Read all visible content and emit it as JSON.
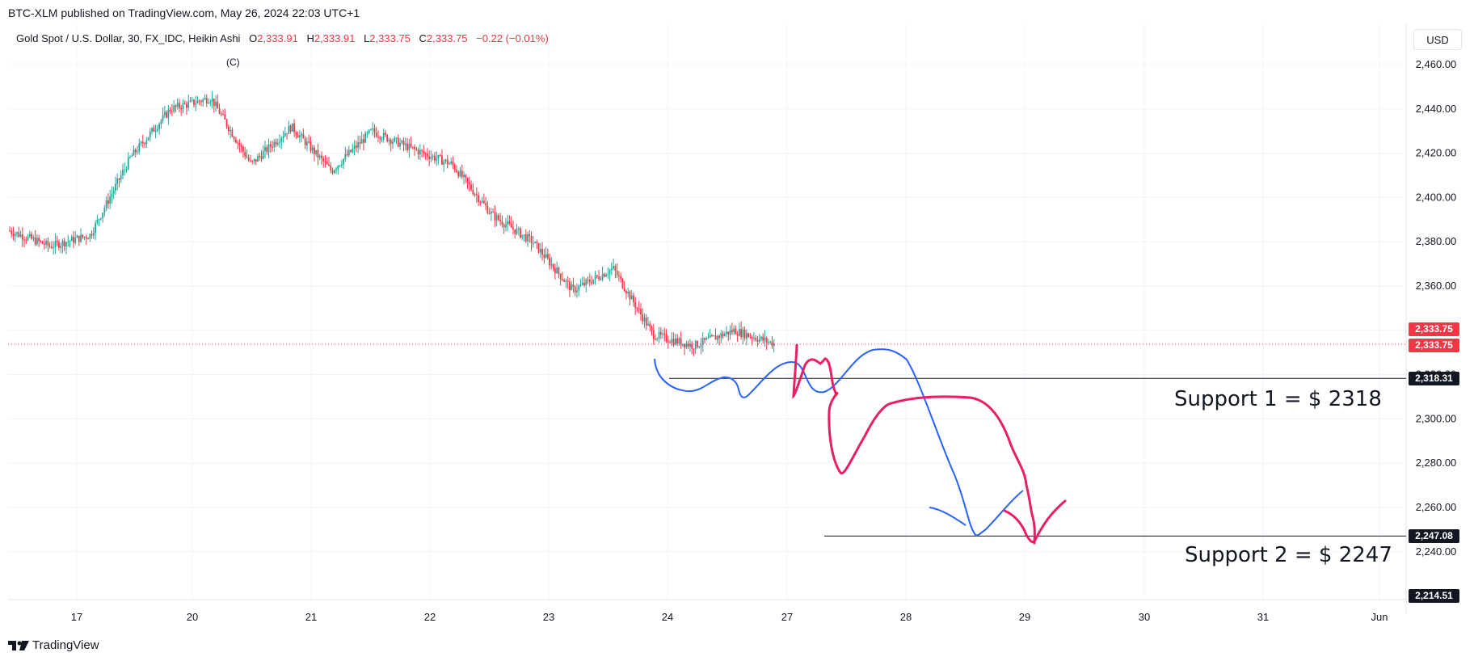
{
  "published": "BTC-XLM published on TradingView.com, May 26, 2024 22:03 UTC+1",
  "legend": {
    "symbol": "Gold Spot / U.S. Dollar, 30, FX_IDC, Heikin Ashi",
    "o_key": "O",
    "o_val": "2,333.91",
    "h_key": "H",
    "h_val": "2,333.91",
    "l_key": "L",
    "l_val": "2,333.75",
    "c_key": "C",
    "c_val": "2,333.75",
    "change": "−0.22 (−0.01%)"
  },
  "currency_button": "USD",
  "wave_label": "(C)",
  "supports": {
    "s1_label": "Support 1 = $ 2318",
    "s2_label": "Support 2 = $ 2247"
  },
  "price_tags": {
    "current_a": "2,333.75",
    "current_b": "2,333.75",
    "support1": "2,318.31",
    "support2": "2,247.08",
    "low": "2,214.51"
  },
  "footer_brand": "TradingView",
  "colors": {
    "up": "#26a69a",
    "down": "#f23645",
    "blue_path": "#2962ff",
    "pink_path": "#e91e63",
    "grid": "#f0f3fa",
    "text": "#131722"
  },
  "chart_data": {
    "type": "candlestick",
    "title": "Gold Spot / U.S. Dollar, 30, FX_IDC, Heikin Ashi",
    "y_ticks": [
      "2,460.00",
      "2,440.00",
      "2,420.00",
      "2,400.00",
      "2,380.00",
      "2,360.00",
      "2,340.00",
      "2,320.00",
      "2,300.00",
      "2,280.00",
      "2,260.00",
      "2,240.00"
    ],
    "y_tick_values": [
      2460,
      2440,
      2420,
      2400,
      2380,
      2360,
      2340,
      2320,
      2300,
      2280,
      2260,
      2240
    ],
    "x_ticks": [
      "17",
      "20",
      "21",
      "22",
      "23",
      "24",
      "27",
      "28",
      "29",
      "30",
      "31",
      "Jun"
    ],
    "ylim": [
      2214.51,
      2472
    ],
    "grid": true,
    "current_price": 2333.75,
    "support_levels": [
      2318.31,
      2247.08
    ],
    "price_path": [
      {
        "day": "16",
        "close": 2385
      },
      {
        "day": "17",
        "close": 2378
      },
      {
        "day": "17",
        "close": 2383
      },
      {
        "day": "20",
        "close": 2418
      },
      {
        "day": "20",
        "close": 2440
      },
      {
        "day": "20",
        "close": 2445
      },
      {
        "day": "21",
        "close": 2415
      },
      {
        "day": "21",
        "close": 2432
      },
      {
        "day": "21",
        "close": 2412
      },
      {
        "day": "22",
        "close": 2430
      },
      {
        "day": "22",
        "close": 2422
      },
      {
        "day": "22",
        "close": 2415
      },
      {
        "day": "23",
        "close": 2392
      },
      {
        "day": "23",
        "close": 2380
      },
      {
        "day": "23",
        "close": 2358
      },
      {
        "day": "23",
        "close": 2368
      },
      {
        "day": "24",
        "close": 2338
      },
      {
        "day": "24",
        "close": 2333
      },
      {
        "day": "24",
        "close": 2340
      },
      {
        "day": "24",
        "close": 2334
      }
    ]
  }
}
